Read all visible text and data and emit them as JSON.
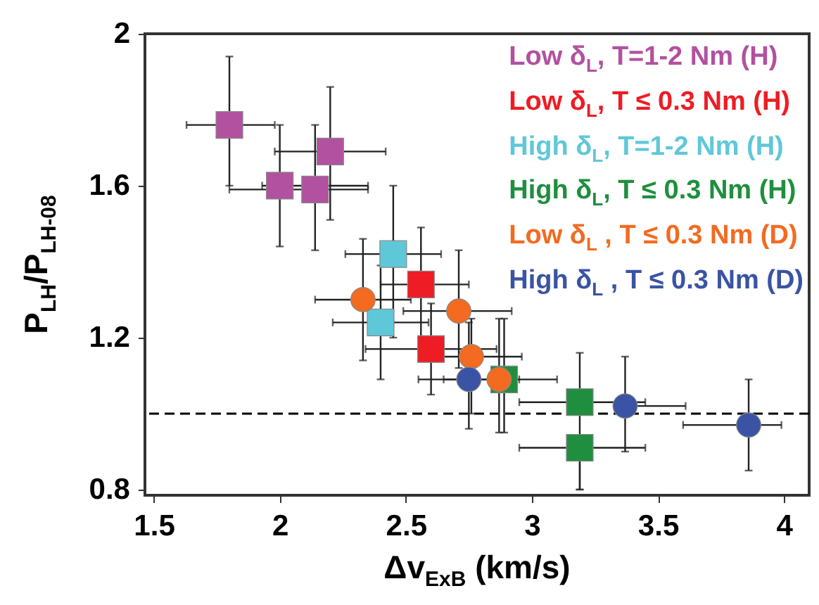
{
  "chart_data": {
    "type": "scatter",
    "xlabel": "Δv$_{ExB}$ (km/s)",
    "ylabel": "P$_{LH}$/P$_{LH-08}$",
    "xlim": [
      1.465,
      4.1
    ],
    "xticks": [
      1.5,
      2.0,
      2.5,
      3.0,
      3.5,
      4.0
    ],
    "ylim": [
      0.785,
      2.0
    ],
    "yticks": [
      0.8,
      1.2,
      1.6,
      2.0
    ],
    "legend": "top right",
    "grid": false,
    "ref_lines": [
      {
        "axis": "y",
        "value": 1.0,
        "line_style": "dashed",
        "color": "#000000"
      }
    ],
    "series": [
      {
        "name": "Low δ$_{L}$, T=1-2 Nm (H)",
        "color": "#b2519f",
        "marker": "square",
        "x": [
          1.8,
          2.0,
          2.14,
          2.2
        ],
        "values": [
          1.76,
          1.6,
          1.59,
          1.69
        ],
        "errors": [
          [
            1.6,
            1.94
          ],
          [
            1.44,
            1.76
          ],
          [
            1.43,
            1.76
          ],
          [
            1.51,
            1.86
          ]
        ],
        "xerrors": [
          [
            1.63,
            1.98
          ],
          [
            1.93,
            2.35
          ],
          [
            1.8,
            2.35
          ],
          [
            1.98,
            2.42
          ]
        ]
      },
      {
        "name": "Low δ$_{L}$, T ≤ 0.3 Nm (H)",
        "color": "#ee1c24",
        "marker": "square",
        "x": [
          2.56,
          2.6
        ],
        "values": [
          1.34,
          1.17
        ],
        "errors": [
          [
            1.2,
            1.49
          ],
          [
            1.05,
            1.29
          ]
        ],
        "xerrors": [
          [
            2.4,
            2.75
          ],
          [
            2.34,
            2.86
          ]
        ]
      },
      {
        "name": "High δ$_{L}$, T=1-2 Nm (H)",
        "color": "#5ec8d8",
        "marker": "square",
        "x": [
          2.45,
          2.4
        ],
        "values": [
          1.42,
          1.24
        ],
        "errors": [
          [
            1.2,
            1.6
          ],
          [
            1.09,
            1.39
          ]
        ],
        "xerrors": [
          [
            2.26,
            2.64
          ],
          [
            2.21,
            2.59
          ]
        ]
      },
      {
        "name": "High δ$_{L}$, T ≤ 0.3 Nm (H)",
        "color": "#1f8f3f",
        "marker": "square",
        "x": [
          2.89,
          3.19,
          3.19
        ],
        "values": [
          1.09,
          1.03,
          0.91
        ],
        "errors": [
          [
            0.95,
            1.25
          ],
          [
            0.8,
            1.16
          ],
          [
            0.8,
            0.91
          ]
        ],
        "xerrors": [
          null,
          [
            2.95,
            3.45
          ],
          [
            2.95,
            3.45
          ]
        ]
      },
      {
        "name": "Low δ$_{L}$ , T ≤ 0.3 Nm (D)",
        "color": "#f26b21",
        "marker": "circle",
        "x": [
          2.33,
          2.71,
          2.76,
          2.87
        ],
        "values": [
          1.3,
          1.27,
          1.15,
          1.09
        ],
        "errors": [
          [
            1.14,
            1.46
          ],
          [
            1.12,
            1.43
          ],
          [
            1.0,
            1.25
          ],
          [
            0.95,
            1.25
          ]
        ],
        "xerrors": [
          [
            2.14,
            2.52
          ],
          [
            2.49,
            2.92
          ],
          [
            2.56,
            2.96
          ],
          [
            2.65,
            3.1
          ]
        ]
      },
      {
        "name": "High δ$_{L}$ , T ≤ 0.3 Nm (D)",
        "color": "#3a53a4",
        "marker": "circle",
        "x": [
          2.75,
          3.37,
          3.86
        ],
        "values": [
          1.09,
          1.02,
          0.97
        ],
        "errors": [
          [
            0.96,
            1.24
          ],
          [
            0.9,
            1.15
          ],
          [
            0.85,
            1.09
          ]
        ],
        "xerrors": [
          [
            2.55,
            2.95
          ],
          [
            3.37,
            3.61
          ],
          [
            3.6,
            3.99
          ]
        ]
      }
    ]
  }
}
